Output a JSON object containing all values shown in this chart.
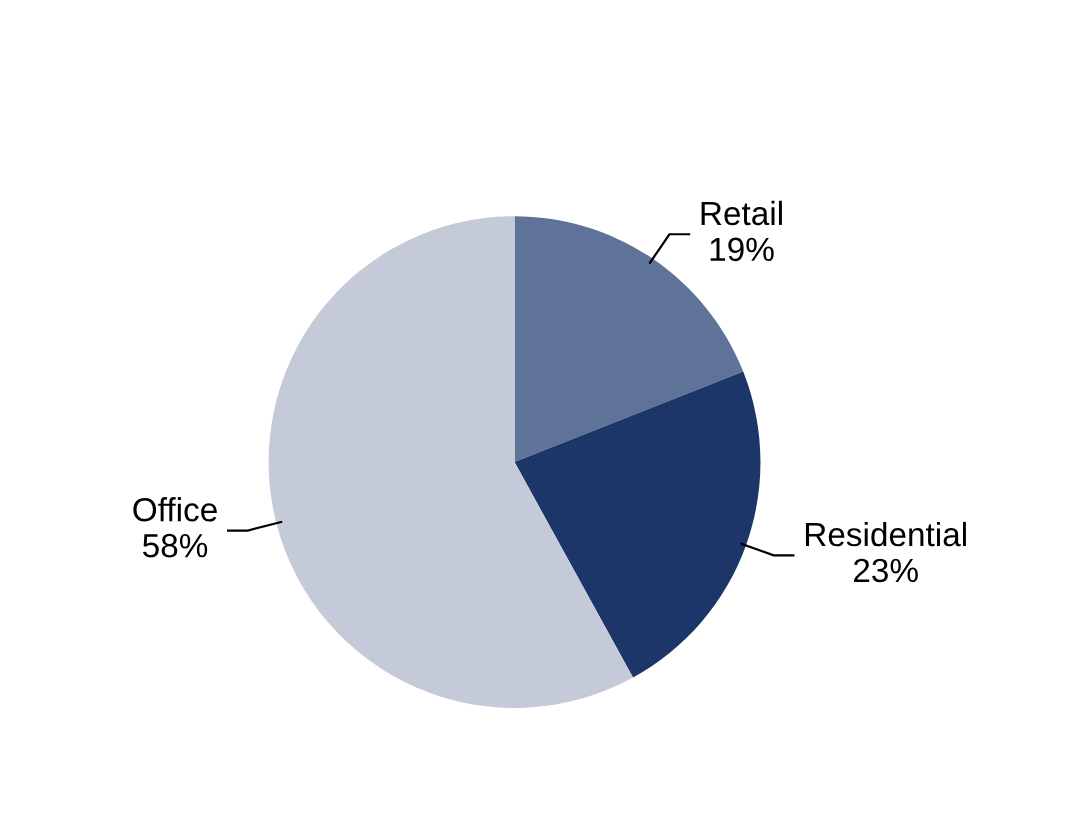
{
  "chart_data": {
    "type": "pie",
    "categories": [
      "Retail",
      "Residential",
      "Office"
    ],
    "values": [
      19,
      23,
      58
    ],
    "colors": [
      "#5f7399",
      "#1c3669",
      "#c5cad9"
    ],
    "value_labels": [
      "19%",
      "23%",
      "58%"
    ]
  }
}
